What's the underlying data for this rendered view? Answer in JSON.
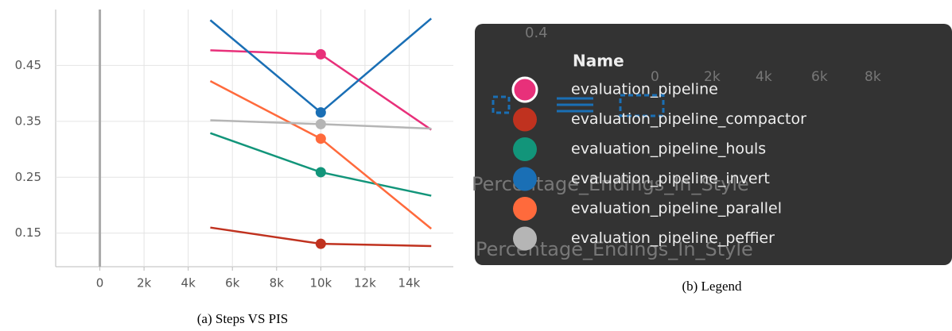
{
  "chart_data": {
    "type": "line",
    "x": [
      5000,
      10000,
      15000
    ],
    "xlim": [
      -2000,
      16000
    ],
    "xticks": [
      0,
      {
        "value": 2000,
        "label": "2k"
      },
      {
        "value": 4000,
        "label": "4k"
      },
      {
        "value": 6000,
        "label": "6k"
      },
      {
        "value": 8000,
        "label": "8k"
      },
      {
        "value": 10000,
        "label": "10k"
      },
      {
        "value": 12000,
        "label": "12k"
      },
      {
        "value": 14000,
        "label": "14k"
      }
    ],
    "ylim": [
      0.09,
      0.55
    ],
    "yticks": [
      0.15,
      0.25,
      0.35,
      0.45
    ],
    "grid": true,
    "series": [
      {
        "name": "evaluation_pipeline",
        "color": "#e8307a",
        "values": [
          0.477,
          0.47,
          0.335
        ]
      },
      {
        "name": "evaluation_pipeline_compactor",
        "color": "#c0321f",
        "values": [
          0.16,
          0.131,
          0.127
        ]
      },
      {
        "name": "evaluation_pipeline_houls",
        "color": "#12957a",
        "values": [
          0.329,
          0.259,
          0.217
        ]
      },
      {
        "name": "evaluation_pipeline_invert",
        "color": "#1a6fb5",
        "values": [
          0.531,
          0.366,
          0.534
        ]
      },
      {
        "name": "evaluation_pipeline_parallel",
        "color": "#ff6a3c",
        "values": [
          0.422,
          0.319,
          0.158
        ]
      },
      {
        "name": "evaluation_pipeline_peffier",
        "color": "#b5b5b5",
        "values": [
          0.352,
          0.345,
          0.337
        ]
      }
    ]
  },
  "legend_panel": {
    "title": "Name",
    "background_texts": [
      "0.4",
      "0",
      "2k",
      "4k",
      "6k",
      "8k",
      "Percentage_Endings_In_Style",
      "Percentage_Endings_In_Style"
    ]
  },
  "captions": [
    "(a) Steps VS PIS",
    "(b) Legend"
  ]
}
